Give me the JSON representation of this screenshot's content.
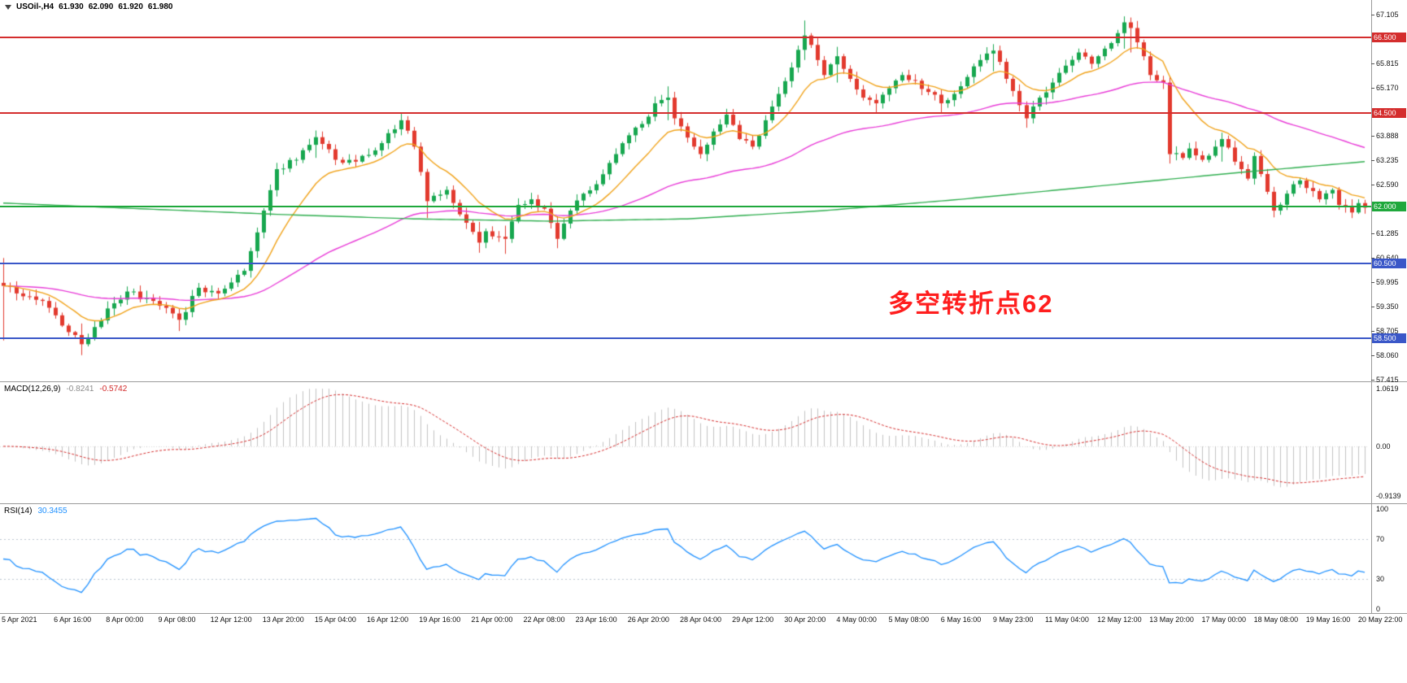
{
  "window_title": {
    "symbol": "USOil-,H4",
    "open": "61.930",
    "high": "62.090",
    "low": "61.920",
    "close": "61.980"
  },
  "annotation": {
    "text": "多空转折点62",
    "color": "#ff1e1e"
  },
  "indicators": {
    "macd": {
      "label": "MACD(12,26,9)",
      "main_value": "-0.8241",
      "signal_value": "-0.5742",
      "fast": 12,
      "slow": 26,
      "signal": 9,
      "range": [
        -0.9139,
        1.0619
      ],
      "axis_labels": [
        {
          "v": 1.0619,
          "t": "1.0619"
        },
        {
          "v": 0,
          "t": "0.00"
        },
        {
          "v": -0.9139,
          "t": "-0.9139"
        }
      ],
      "hist_color": "#c2c2c2",
      "signal_color": "#d42a2a"
    },
    "rsi": {
      "label": "RSI(14)",
      "value": "30.3455",
      "period": 14,
      "range": [
        0,
        100
      ],
      "levels": [
        70,
        30
      ],
      "axis_labels": [
        {
          "v": 100,
          "t": "100"
        },
        {
          "v": 70,
          "t": "70"
        },
        {
          "v": 30,
          "t": "30"
        },
        {
          "v": 0,
          "t": "0"
        }
      ],
      "line_color": "#1e90ff",
      "level_color": "#b9c5cf"
    }
  },
  "chart_data": {
    "type": "candlestick",
    "symbol": "USOil",
    "timeframe": "H4",
    "ylim": [
      57.386,
      67.494
    ],
    "y_ticks": [
      {
        "v": 67.105,
        "t": "67.105"
      },
      {
        "v": 65.815,
        "t": "65.815"
      },
      {
        "v": 65.17,
        "t": "65.170"
      },
      {
        "v": 63.888,
        "t": "63.888"
      },
      {
        "v": 63.235,
        "t": "63.235"
      },
      {
        "v": 62.59,
        "t": "62.590"
      },
      {
        "v": 61.285,
        "t": "61.285"
      },
      {
        "v": 60.64,
        "t": "60.640"
      },
      {
        "v": 59.995,
        "t": "59.995"
      },
      {
        "v": 59.35,
        "t": "59.350"
      },
      {
        "v": 58.705,
        "t": "58.705"
      },
      {
        "v": 58.06,
        "t": "58.060"
      },
      {
        "v": 57.415,
        "t": "57.415"
      }
    ],
    "level_lines": [
      {
        "value": 66.5,
        "label": "66.500",
        "color": "#d42d2d"
      },
      {
        "value": 64.5,
        "label": "64.500",
        "color": "#d42d2d"
      },
      {
        "value": 62.0,
        "label": "62.000",
        "color": "#1fa83c"
      },
      {
        "value": 60.5,
        "label": "60.500",
        "color": "#3a57c8"
      },
      {
        "value": 58.5,
        "label": "58.500",
        "color": "#3a57c8"
      }
    ],
    "x_labels": [
      "5 Apr 2021",
      "6 Apr 16:00",
      "8 Apr 00:00",
      "9 Apr 08:00",
      "12 Apr 12:00",
      "13 Apr 20:00",
      "15 Apr 04:00",
      "16 Apr 12:00",
      "19 Apr 16:00",
      "21 Apr 00:00",
      "22 Apr 08:00",
      "23 Apr 16:00",
      "26 Apr 20:00",
      "28 Apr 04:00",
      "29 Apr 12:00",
      "30 Apr 20:00",
      "4 May 00:00",
      "5 May 08:00",
      "6 May 16:00",
      "9 May 23:00",
      "11 May 04:00",
      "12 May 12:00",
      "13 May 20:00",
      "17 May 00:00",
      "18 May 08:00",
      "19 May 16:00",
      "20 May 22:00"
    ],
    "candles": {
      "count": 210,
      "up_color": "#17a74f",
      "down_color": "#e23a2e",
      "close_waypoints": [
        [
          0,
          59.9
        ],
        [
          6,
          59.5
        ],
        [
          12,
          58.35
        ],
        [
          16,
          59.3
        ],
        [
          19,
          59.75
        ],
        [
          23,
          59.5
        ],
        [
          27,
          59.0
        ],
        [
          30,
          59.85
        ],
        [
          33,
          59.7
        ],
        [
          37,
          60.3
        ],
        [
          40,
          61.9
        ],
        [
          42,
          63.0
        ],
        [
          45,
          63.25
        ],
        [
          48,
          63.85
        ],
        [
          51,
          63.25
        ],
        [
          54,
          63.2
        ],
        [
          57,
          63.5
        ],
        [
          61,
          64.3
        ],
        [
          63,
          63.6
        ],
        [
          65,
          62.15
        ],
        [
          68,
          62.45
        ],
        [
          70,
          61.8
        ],
        [
          73,
          61.05
        ],
        [
          74,
          61.35
        ],
        [
          77,
          61.15
        ],
        [
          79,
          62.05
        ],
        [
          81,
          62.2
        ],
        [
          83,
          61.95
        ],
        [
          85,
          61.15
        ],
        [
          87,
          61.9
        ],
        [
          89,
          62.35
        ],
        [
          91,
          62.6
        ],
        [
          94,
          63.4
        ],
        [
          96,
          63.9
        ],
        [
          98,
          64.2
        ],
        [
          100,
          64.75
        ],
        [
          102,
          64.9
        ],
        [
          103,
          64.35
        ],
        [
          106,
          63.6
        ],
        [
          107,
          63.4
        ],
        [
          109,
          64.0
        ],
        [
          111,
          64.45
        ],
        [
          113,
          63.8
        ],
        [
          115,
          63.6
        ],
        [
          117,
          64.3
        ],
        [
          119,
          65.0
        ],
        [
          121,
          65.7
        ],
        [
          123,
          66.55
        ],
        [
          124,
          66.3
        ],
        [
          126,
          65.5
        ],
        [
          128,
          66.0
        ],
        [
          130,
          65.4
        ],
        [
          132,
          64.9
        ],
        [
          134,
          64.75
        ],
        [
          136,
          65.15
        ],
        [
          138,
          65.5
        ],
        [
          140,
          65.35
        ],
        [
          142,
          65.05
        ],
        [
          144,
          64.75
        ],
        [
          146,
          65.0
        ],
        [
          148,
          65.45
        ],
        [
          150,
          65.9
        ],
        [
          152,
          66.15
        ],
        [
          154,
          65.4
        ],
        [
          156,
          64.7
        ],
        [
          157,
          64.35
        ],
        [
          159,
          64.9
        ],
        [
          161,
          65.3
        ],
        [
          163,
          65.75
        ],
        [
          165,
          66.1
        ],
        [
          167,
          65.8
        ],
        [
          168,
          66.0
        ],
        [
          170,
          66.35
        ],
        [
          172,
          66.9
        ],
        [
          173,
          66.75
        ],
        [
          175,
          66.0
        ],
        [
          176,
          65.5
        ],
        [
          178,
          65.3
        ],
        [
          179,
          63.4
        ],
        [
          181,
          63.3
        ],
        [
          182,
          63.55
        ],
        [
          184,
          63.25
        ],
        [
          186,
          63.6
        ],
        [
          187,
          63.8
        ],
        [
          189,
          63.2
        ],
        [
          191,
          62.75
        ],
        [
          192,
          63.35
        ],
        [
          194,
          62.4
        ],
        [
          195,
          61.9
        ],
        [
          197,
          62.35
        ],
        [
          199,
          62.7
        ],
        [
          200,
          62.5
        ],
        [
          202,
          62.2
        ],
        [
          204,
          62.45
        ],
        [
          205,
          62.05
        ],
        [
          207,
          61.85
        ],
        [
          208,
          62.1
        ],
        [
          209,
          61.98
        ]
      ],
      "wick_spikes": [
        [
          0,
          60.64,
          58.45
        ],
        [
          12,
          58.9,
          58.06
        ],
        [
          27,
          59.3,
          58.7
        ],
        [
          48,
          63.99,
          63.3
        ],
        [
          61,
          64.48,
          63.9
        ],
        [
          65,
          62.6,
          61.7
        ],
        [
          73,
          61.6,
          60.78
        ],
        [
          77,
          61.5,
          60.75
        ],
        [
          85,
          61.6,
          60.9
        ],
        [
          102,
          65.2,
          64.3
        ],
        [
          123,
          66.95,
          65.9
        ],
        [
          128,
          66.25,
          65.3
        ],
        [
          134,
          65.0,
          64.5
        ],
        [
          144,
          65.0,
          64.48
        ],
        [
          152,
          66.32,
          65.6
        ],
        [
          157,
          64.8,
          64.1
        ],
        [
          172,
          67.06,
          66.2
        ],
        [
          173,
          67.0,
          66.1
        ],
        [
          179,
          64.9,
          63.15
        ],
        [
          187,
          63.97,
          63.2
        ],
        [
          195,
          62.5,
          61.72
        ],
        [
          207,
          62.1,
          61.7
        ]
      ]
    },
    "moving_averages": {
      "fast": {
        "period": 12,
        "type": "ema",
        "color": "#f0a219"
      },
      "slow": {
        "period": 60,
        "type": "ema",
        "color": "#e83bd7"
      },
      "long": {
        "color": "#2fae4f",
        "waypoints": [
          [
            0,
            62.1
          ],
          [
            21,
            61.95
          ],
          [
            42,
            61.8
          ],
          [
            63,
            61.68
          ],
          [
            84,
            61.62
          ],
          [
            105,
            61.68
          ],
          [
            126,
            61.9
          ],
          [
            147,
            62.2
          ],
          [
            168,
            62.55
          ],
          [
            189,
            62.9
          ],
          [
            209,
            63.2
          ]
        ]
      }
    }
  }
}
